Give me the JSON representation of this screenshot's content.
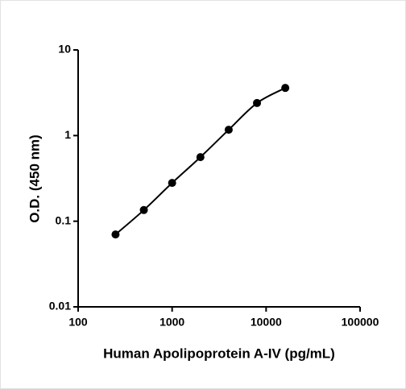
{
  "chart_data": {
    "type": "scatter",
    "x_label": "Human Apolipoprotein A-IV (pg/mL)",
    "y_label": "O.D. (450 nm)",
    "x": [
      250,
      500,
      1000,
      2000,
      4000,
      8000,
      16000
    ],
    "series": [
      {
        "color": "#000000",
        "values": [
          0.07,
          0.135,
          0.28,
          0.56,
          1.17,
          2.4,
          3.6
        ]
      }
    ],
    "xlim": [
      100,
      100000
    ],
    "xticks": [
      100,
      1000,
      10000,
      100000
    ],
    "ylim": [
      0.01,
      10
    ],
    "yticks": [
      0.01,
      0.1,
      1,
      10
    ],
    "xscale": "log",
    "yscale": "log",
    "fit_line": true,
    "grid": false
  }
}
